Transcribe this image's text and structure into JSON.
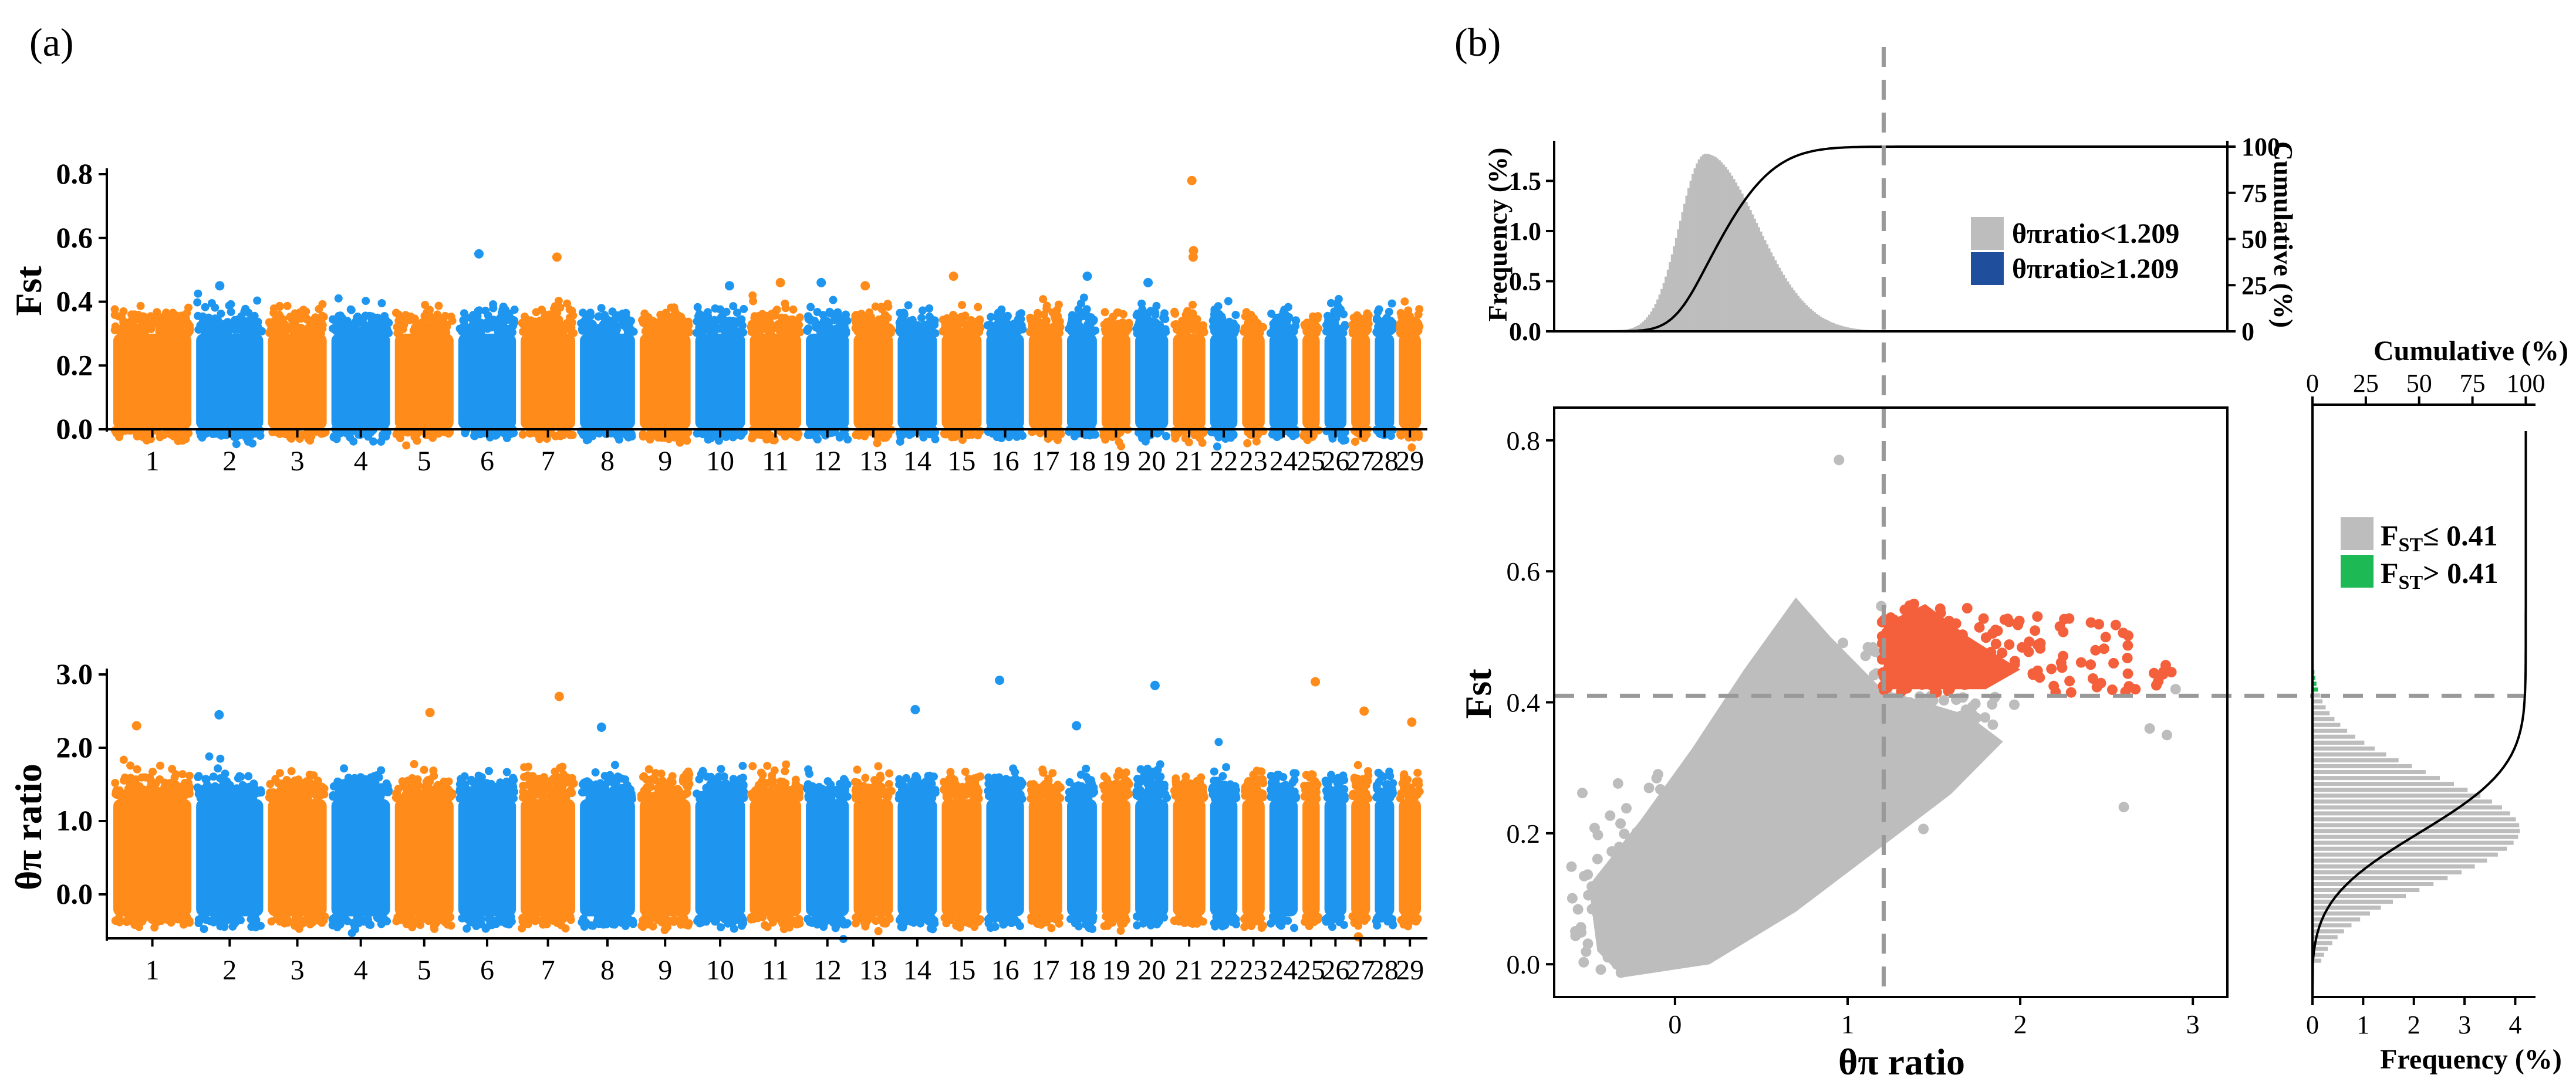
{
  "panel_labels": {
    "a": "(a)",
    "b": "(b)"
  },
  "colors": {
    "orange": "#FF8C1A",
    "blue": "#1E96F0",
    "gray": "#BDBDBD",
    "red": "#F4603C",
    "navy": "#1F4E9C",
    "green": "#1DB954",
    "dashed": "#9A9A9A"
  },
  "chart_data": [
    {
      "type": "scatter",
      "subtype": "manhattan",
      "title": "",
      "ylabel": "Fst",
      "xlabel": "",
      "ylim": [
        0,
        0.8
      ],
      "yticks": [
        "0.0",
        "0.2",
        "0.4",
        "0.6",
        "0.8"
      ],
      "ytick_values": [
        0,
        0.2,
        0.4,
        0.6,
        0.8
      ],
      "categories": [
        "1",
        "2",
        "3",
        "4",
        "5",
        "6",
        "7",
        "8",
        "9",
        "10",
        "11",
        "12",
        "13",
        "14",
        "15",
        "16",
        "17",
        "18",
        "19",
        "20",
        "21",
        "22",
        "23",
        "24",
        "25",
        "26",
        "27",
        "28",
        "29"
      ],
      "chromosome_widths": [
        158,
        137,
        121,
        121,
        121,
        119,
        113,
        114,
        106,
        104,
        107,
        91,
        84,
        84,
        85,
        81,
        73,
        66,
        64,
        72,
        71,
        61,
        52,
        63,
        42,
        51,
        45,
        46,
        51
      ],
      "series": [
        {
          "name": "Fst",
          "band_low": [
            0.0,
            0.3
          ]
        }
      ],
      "peaks": [
        {
          "chromosome": "21",
          "value": 0.78
        },
        {
          "chromosome": "21",
          "value": 0.56
        },
        {
          "chromosome": "21",
          "value": 0.54
        },
        {
          "chromosome": "6",
          "value": 0.55
        },
        {
          "chromosome": "7",
          "value": 0.54
        },
        {
          "chromosome": "15",
          "value": 0.48
        },
        {
          "chromosome": "18",
          "value": 0.48
        },
        {
          "chromosome": "13",
          "value": 0.45
        },
        {
          "chromosome": "11",
          "value": 0.46
        },
        {
          "chromosome": "12",
          "value": 0.46
        },
        {
          "chromosome": "20",
          "value": 0.46
        },
        {
          "chromosome": "2",
          "value": 0.45
        },
        {
          "chromosome": "10",
          "value": 0.45
        }
      ],
      "colors_alternate": [
        "orange",
        "blue"
      ]
    },
    {
      "type": "scatter",
      "subtype": "manhattan",
      "title": "",
      "ylabel": "θπ ratio",
      "xlabel": "",
      "ylim": [
        -0.6,
        3.0
      ],
      "yticks": [
        "0.0",
        "1.0",
        "2.0",
        "3.0"
      ],
      "ytick_values": [
        0,
        1,
        2,
        3
      ],
      "categories": [
        "1",
        "2",
        "3",
        "4",
        "5",
        "6",
        "7",
        "8",
        "9",
        "10",
        "11",
        "12",
        "13",
        "14",
        "15",
        "16",
        "17",
        "18",
        "19",
        "20",
        "21",
        "22",
        "23",
        "24",
        "25",
        "26",
        "27",
        "28",
        "29"
      ],
      "series": [
        {
          "name": "θπ ratio",
          "band_low": [
            -0.3,
            1.3
          ]
        }
      ],
      "peaks": [
        {
          "chromosome": "16",
          "value": 2.92
        },
        {
          "chromosome": "25",
          "value": 2.9
        },
        {
          "chromosome": "20",
          "value": 2.85
        },
        {
          "chromosome": "7",
          "value": 2.7
        },
        {
          "chromosome": "14",
          "value": 2.52
        },
        {
          "chromosome": "27",
          "value": 2.5
        },
        {
          "chromosome": "5",
          "value": 2.48
        },
        {
          "chromosome": "2",
          "value": 2.45
        },
        {
          "chromosome": "29",
          "value": 2.35
        },
        {
          "chromosome": "1",
          "value": 2.3
        },
        {
          "chromosome": "18",
          "value": 2.3
        },
        {
          "chromosome": "8",
          "value": 2.28
        },
        {
          "chromosome": "27",
          "value": -0.58
        }
      ]
    },
    {
      "type": "scatter",
      "title": "",
      "xlabel": "θπ ratio",
      "ylabel": "Fst",
      "xlim": [
        -0.7,
        3.2
      ],
      "ylim": [
        -0.05,
        0.85
      ],
      "xticks": [
        "0",
        "1",
        "2",
        "3"
      ],
      "xtick_values": [
        0,
        1,
        2,
        3
      ],
      "yticks": [
        "0.0",
        "0.2",
        "0.4",
        "0.6",
        "0.8"
      ],
      "ytick_values": [
        0,
        0.2,
        0.4,
        0.6,
        0.8
      ],
      "thresholds": {
        "theta_pi_ratio": 1.209,
        "fst": 0.41
      },
      "series": [
        {
          "name": "background",
          "color": "gray",
          "cloud": "diagonal band from (-0.4, 0.0) to (1.8, 0.5)"
        },
        {
          "name": "selected",
          "color": "red",
          "region": "θπ ratio ≥ 1.209 and Fst > 0.41",
          "x_range": [
            1.2,
            2.9
          ],
          "y_range": [
            0.41,
            0.57
          ]
        }
      ],
      "outliers": [
        {
          "x": 0.95,
          "y": 0.77
        },
        {
          "x": 2.9,
          "y": 0.42
        },
        {
          "x": 2.75,
          "y": 0.36
        },
        {
          "x": 2.85,
          "y": 0.35
        },
        {
          "x": 2.6,
          "y": 0.24
        }
      ]
    },
    {
      "type": "bar",
      "subtype": "histogram_with_cumulative",
      "title": "",
      "ylabel": "Frequency (%)",
      "ylabel_right": "Cumulative (%)",
      "xlim": [
        -0.7,
        3.2
      ],
      "ylim": [
        0,
        1.9
      ],
      "yticks": [
        "0.0",
        "0.5",
        "1.0",
        "1.5"
      ],
      "ytick_values": [
        0,
        0.5,
        1.0,
        1.5
      ],
      "yticks_right": [
        "0",
        "25",
        "50",
        "75",
        "100"
      ],
      "ytick_values_right": [
        0,
        25,
        50,
        75,
        100
      ],
      "distribution": {
        "mode": 0.17,
        "peak_frequency": 1.77,
        "left_sd": 0.15,
        "right_sd": 0.3
      },
      "threshold": 1.209,
      "legend": [
        {
          "label": "θπratio<1.209",
          "color": "gray"
        },
        {
          "label": "θπratio≥1.209",
          "color": "navy"
        }
      ]
    },
    {
      "type": "bar",
      "subtype": "horizontal_histogram_with_cumulative",
      "title": "",
      "xlabel": "Frequency (%)",
      "xlabel_top": "Cumulative (%)",
      "xlim": [
        0,
        4.4
      ],
      "xticks": [
        "0",
        "1",
        "2",
        "3",
        "4"
      ],
      "xtick_values": [
        0,
        1,
        2,
        3,
        4
      ],
      "xticks_top": [
        "0",
        "25",
        "50",
        "75",
        "100"
      ],
      "xtick_values_top": [
        0,
        25,
        50,
        75,
        100
      ],
      "distribution": {
        "mode": 0.2,
        "peak_frequency": 4.1,
        "sd": 0.08
      },
      "threshold": 0.41,
      "legend": [
        {
          "label_main": "F",
          "label_sub": "ST",
          "label_rest": "≤ 0.41",
          "color": "gray"
        },
        {
          "label_main": "F",
          "label_sub": "ST",
          "label_rest": "> 0.41",
          "color": "green"
        }
      ]
    }
  ]
}
